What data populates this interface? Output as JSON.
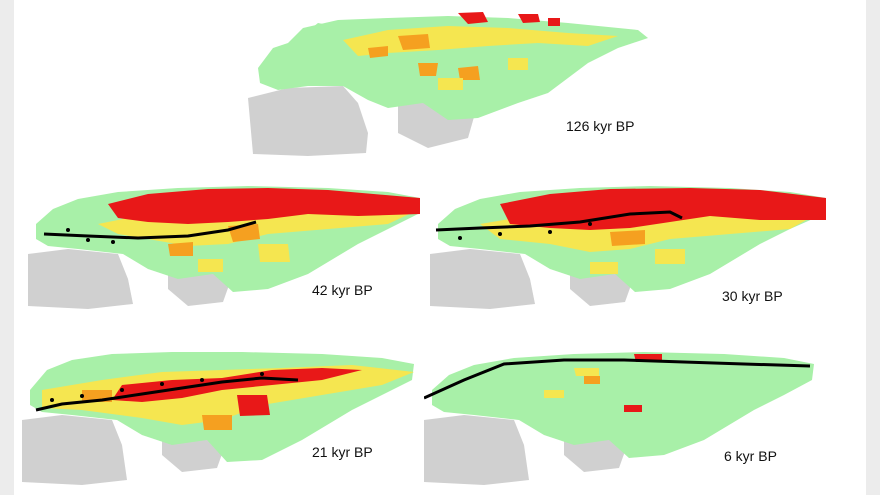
{
  "figure": {
    "panels": [
      {
        "id": "p126",
        "label": "126 kyr BP",
        "has_line": false
      },
      {
        "id": "p42",
        "label": "42 kyr BP",
        "has_line": true
      },
      {
        "id": "p30",
        "label": "30 kyr BP",
        "has_line": true
      },
      {
        "id": "p21",
        "label": "21 kyr BP",
        "has_line": true
      },
      {
        "id": "p6",
        "label": "6 kyr BP",
        "has_line": true
      }
    ],
    "colors": {
      "land": "#a8f0a8",
      "land_outside": "#d0d0d0",
      "yellow": "#f5e650",
      "orange": "#f5a020",
      "red": "#e81818",
      "line": "#000000"
    }
  }
}
